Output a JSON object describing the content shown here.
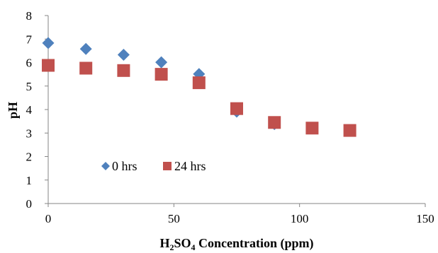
{
  "chart_data": {
    "type": "scatter",
    "title": "",
    "xlabel": {
      "base": "H",
      "sub1": "2",
      "mid": "SO",
      "sub2": "4",
      "rest": " Concentration (ppm)"
    },
    "ylabel": "pH",
    "xlim": [
      0,
      150
    ],
    "ylim": [
      0,
      8
    ],
    "xticks": [
      0,
      50,
      100,
      150
    ],
    "yticks": [
      0,
      1,
      2,
      3,
      4,
      5,
      6,
      7,
      8
    ],
    "grid": false,
    "legend_position": "lower-left",
    "series": [
      {
        "name": "0 hrs",
        "marker": "diamond",
        "color": "#4F81BD",
        "x": [
          0,
          15,
          30,
          45,
          60,
          75,
          90,
          105,
          120
        ],
        "y": [
          6.83,
          6.58,
          6.33,
          6.01,
          5.51,
          3.91,
          3.38,
          3.2,
          3.1
        ]
      },
      {
        "name": "24 hrs",
        "marker": "square",
        "color": "#C0504D",
        "x": [
          0,
          15,
          30,
          45,
          60,
          75,
          90,
          105,
          120
        ],
        "y": [
          5.88,
          5.76,
          5.66,
          5.5,
          5.14,
          4.04,
          3.45,
          3.21,
          3.11
        ]
      }
    ]
  }
}
